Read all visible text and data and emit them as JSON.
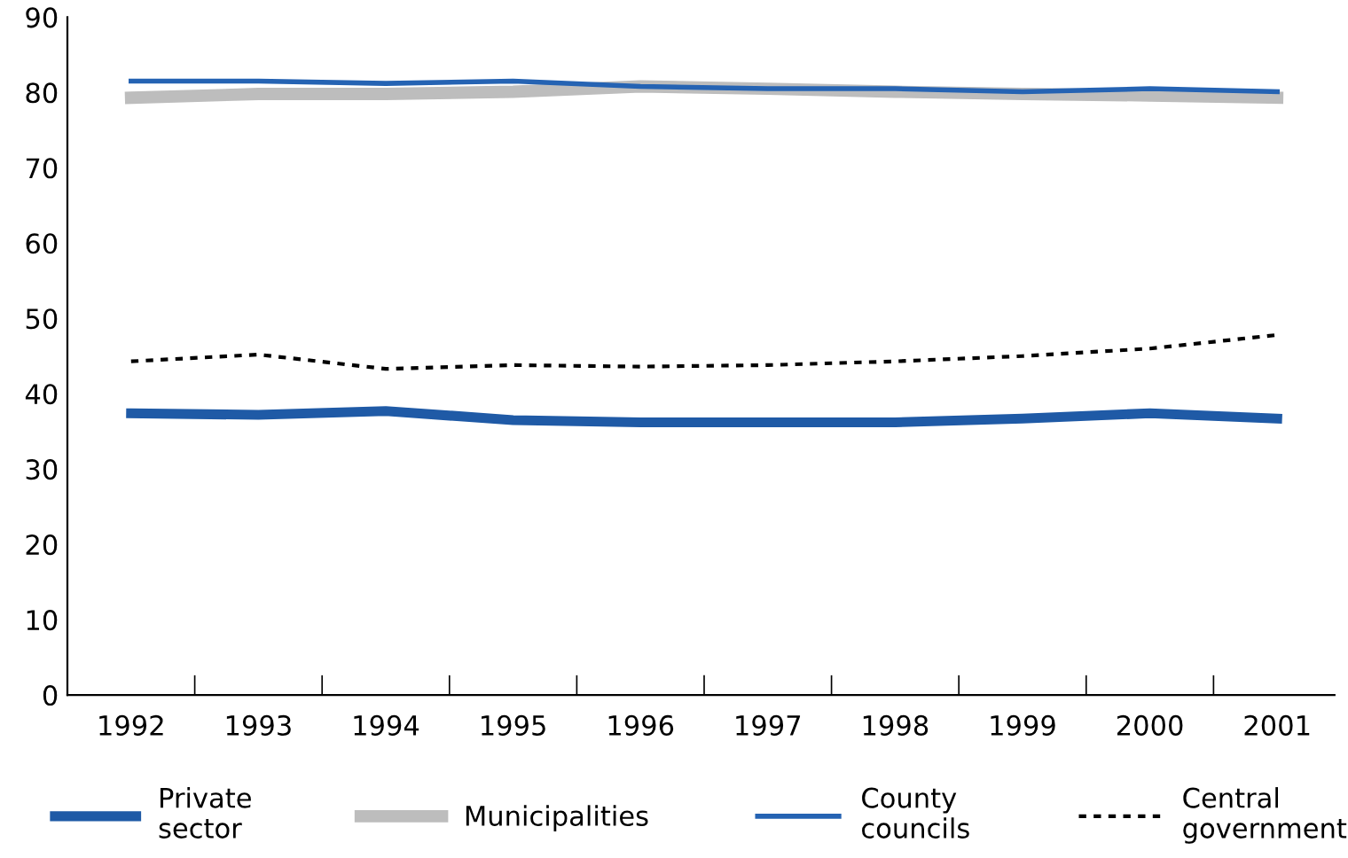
{
  "chart_data": {
    "type": "line",
    "categories": [
      "1992",
      "1993",
      "1994",
      "1995",
      "1996",
      "1997",
      "1998",
      "1999",
      "2000",
      "2001"
    ],
    "series": [
      {
        "name": "Private sector",
        "color": "#1f5aa6",
        "line_style": "solid",
        "values": [
          37.4,
          37.2,
          37.7,
          36.5,
          36.2,
          36.2,
          36.2,
          36.7,
          37.4,
          36.7
        ]
      },
      {
        "name": "Municipalities",
        "color": "#bdbdbd",
        "line_style": "solid",
        "values": [
          79.3,
          79.8,
          79.8,
          80.1,
          80.8,
          80.5,
          80.1,
          79.8,
          79.6,
          79.3
        ]
      },
      {
        "name": "County councils",
        "color": "#2563b3",
        "line_style": "solid",
        "values": [
          81.5,
          81.5,
          81.2,
          81.5,
          80.8,
          80.5,
          80.5,
          80.1,
          80.5,
          80.1
        ]
      },
      {
        "name": "Central government",
        "color": "#000000",
        "line_style": "dotted",
        "values": [
          44.3,
          45.2,
          43.3,
          43.8,
          43.6,
          43.8,
          44.3,
          45.0,
          46.0,
          47.8
        ]
      }
    ],
    "ylim": [
      0,
      90
    ],
    "yticks": [
      0,
      10,
      20,
      30,
      40,
      50,
      60,
      70,
      80,
      90
    ],
    "grid": false,
    "legend": "bottom",
    "marker": "none"
  }
}
